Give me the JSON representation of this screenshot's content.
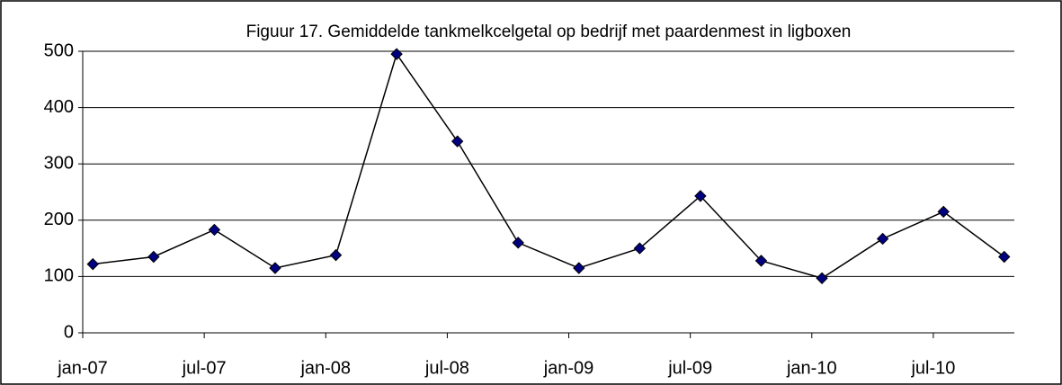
{
  "chart_data": {
    "type": "line",
    "title": "Figuur 17. Gemiddelde tankmelkcelgetal op bedrijf met paardenmest in ligboxen",
    "x": [
      "2007-01",
      "2007-04",
      "2007-07",
      "2007-10",
      "2008-01",
      "2008-04",
      "2008-07",
      "2008-10",
      "2009-01",
      "2009-04",
      "2009-07",
      "2009-10",
      "2010-01",
      "2010-04",
      "2010-07",
      "2010-10"
    ],
    "series": [
      {
        "color": "#000080",
        "values": [
          122,
          135,
          183,
          115,
          138,
          495,
          340,
          160,
          115,
          150,
          243,
          128,
          97,
          167,
          215,
          135
        ]
      }
    ],
    "xlim": [
      "2007-01",
      "2010-11"
    ],
    "xticks": [
      {
        "value": "2007-01",
        "label": "jan-07"
      },
      {
        "value": "2007-07",
        "label": "jul-07"
      },
      {
        "value": "2008-01",
        "label": "jan-08"
      },
      {
        "value": "2008-07",
        "label": "jul-08"
      },
      {
        "value": "2009-01",
        "label": "jan-09"
      },
      {
        "value": "2009-07",
        "label": "jul-09"
      },
      {
        "value": "2010-01",
        "label": "jan-10"
      },
      {
        "value": "2010-07",
        "label": "jul-10"
      }
    ],
    "ylim": [
      0,
      500
    ],
    "yticks": [
      0,
      100,
      200,
      300,
      400,
      500
    ],
    "grid": true
  }
}
